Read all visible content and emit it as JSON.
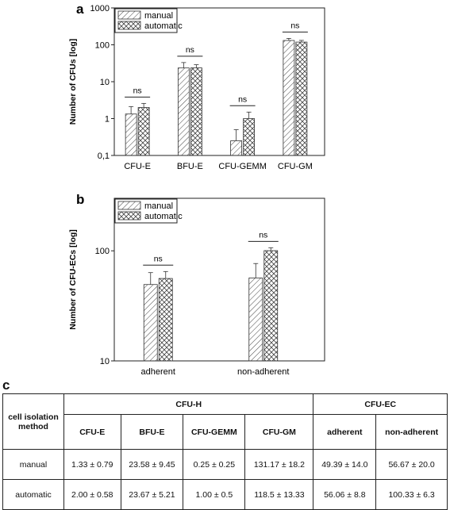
{
  "panels": {
    "a": "a",
    "b": "b",
    "c": "c"
  },
  "chart_data": [
    {
      "type": "bar",
      "scale": "log",
      "ylabel": "Number of CFUs [log]",
      "ylim": [
        0.1,
        1000
      ],
      "yticks": [
        "0,1",
        "1",
        "10",
        "100",
        "1000"
      ],
      "yticks_values": [
        0.1,
        1,
        10,
        100,
        1000
      ],
      "categories": [
        "CFU-E",
        "BFU-E",
        "CFU-GEMM",
        "CFU-GM"
      ],
      "series": [
        {
          "name": "manual",
          "values": [
            1.33,
            23.58,
            0.25,
            131.17
          ],
          "errors": [
            0.79,
            9.45,
            0.25,
            18.2
          ],
          "pattern": "hatch"
        },
        {
          "name": "automatic",
          "values": [
            2.0,
            23.67,
            1.0,
            118.5
          ],
          "errors": [
            0.58,
            5.21,
            0.5,
            13.33
          ],
          "pattern": "cross"
        }
      ],
      "annotations": [
        "ns",
        "ns",
        "ns",
        "ns"
      ],
      "legend": "top-left"
    },
    {
      "type": "bar",
      "scale": "log",
      "ylabel": "Number of CFU-ECs [log]",
      "ylim": [
        10,
        300
      ],
      "yticks": [
        "10",
        "100"
      ],
      "yticks_values": [
        10,
        100
      ],
      "categories": [
        "adherent",
        "non-adherent"
      ],
      "series": [
        {
          "name": "manual",
          "values": [
            49.39,
            56.67
          ],
          "errors": [
            14.0,
            20.0
          ],
          "pattern": "hatch"
        },
        {
          "name": "automatic",
          "values": [
            56.06,
            100.33
          ],
          "errors": [
            8.8,
            6.3
          ],
          "pattern": "cross"
        }
      ],
      "annotations": [
        "ns",
        "ns"
      ],
      "legend": "top-left"
    }
  ],
  "table": {
    "row_header": "cell isolation method",
    "group_h": "CFU-H",
    "group_ec": "CFU-EC",
    "columns": [
      "CFU-E",
      "BFU-E",
      "CFU-GEMM",
      "CFU-GM",
      "adherent",
      "non-adherent"
    ],
    "rows": [
      {
        "label": "manual",
        "cells": [
          "1.33 ± 0.79",
          "23.58 ± 9.45",
          "0.25 ± 0.25",
          "131.17 ± 18.2",
          "49.39 ± 14.0",
          "56.67 ± 20.0"
        ]
      },
      {
        "label": "automatic",
        "cells": [
          "2.00 ± 0.58",
          "23.67 ± 5.21",
          "1.00 ± 0.5",
          "118.5 ± 13.33",
          "56.06 ± 8.8",
          "100.33 ± 6.3"
        ]
      }
    ]
  }
}
